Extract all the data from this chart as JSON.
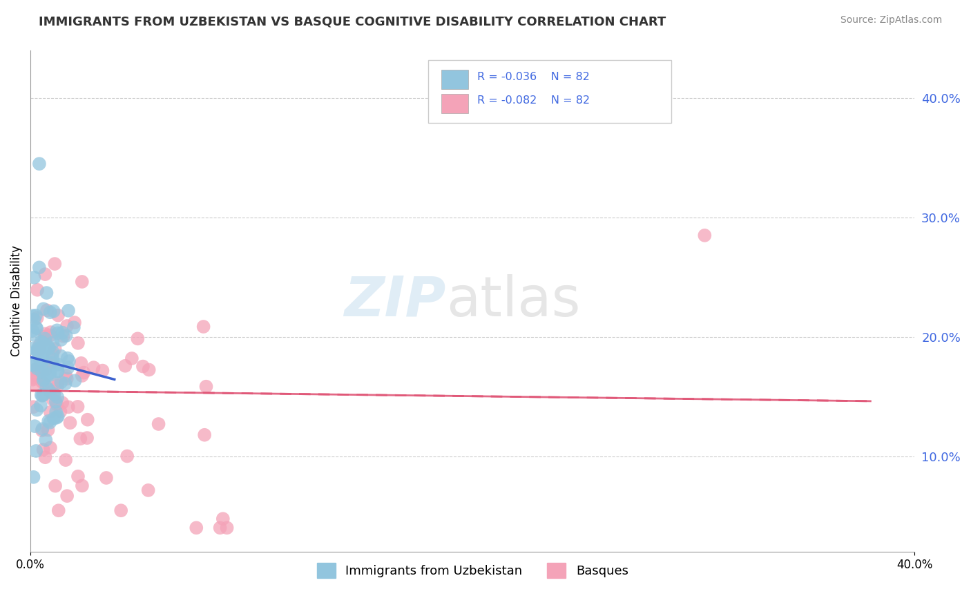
{
  "title": "IMMIGRANTS FROM UZBEKISTAN VS BASQUE COGNITIVE DISABILITY CORRELATION CHART",
  "source": "Source: ZipAtlas.com",
  "ylabel": "Cognitive Disability",
  "ytick_values": [
    0.1,
    0.2,
    0.3,
    0.4
  ],
  "ytick_labels": [
    "10.0%",
    "20.0%",
    "30.0%",
    "40.0%"
  ],
  "xlim": [
    0.0,
    0.4
  ],
  "ylim": [
    0.02,
    0.44
  ],
  "legend_r1": "R = -0.036",
  "legend_n1": "N = 82",
  "legend_r2": "R = -0.082",
  "legend_n2": "N = 82",
  "legend_label1": "Immigrants from Uzbekistan",
  "legend_label2": "Basques",
  "color_blue": "#92c5de",
  "color_pink": "#f4a3b8",
  "trendline_blue": "#3a5fcd",
  "trendline_pink": "#e05878",
  "watermark_zip": "ZIP",
  "watermark_atlas": "atlas",
  "background_color": "#ffffff",
  "grid_color": "#cccccc",
  "title_color": "#333333",
  "source_color": "#888888",
  "tick_color": "#4169e1"
}
